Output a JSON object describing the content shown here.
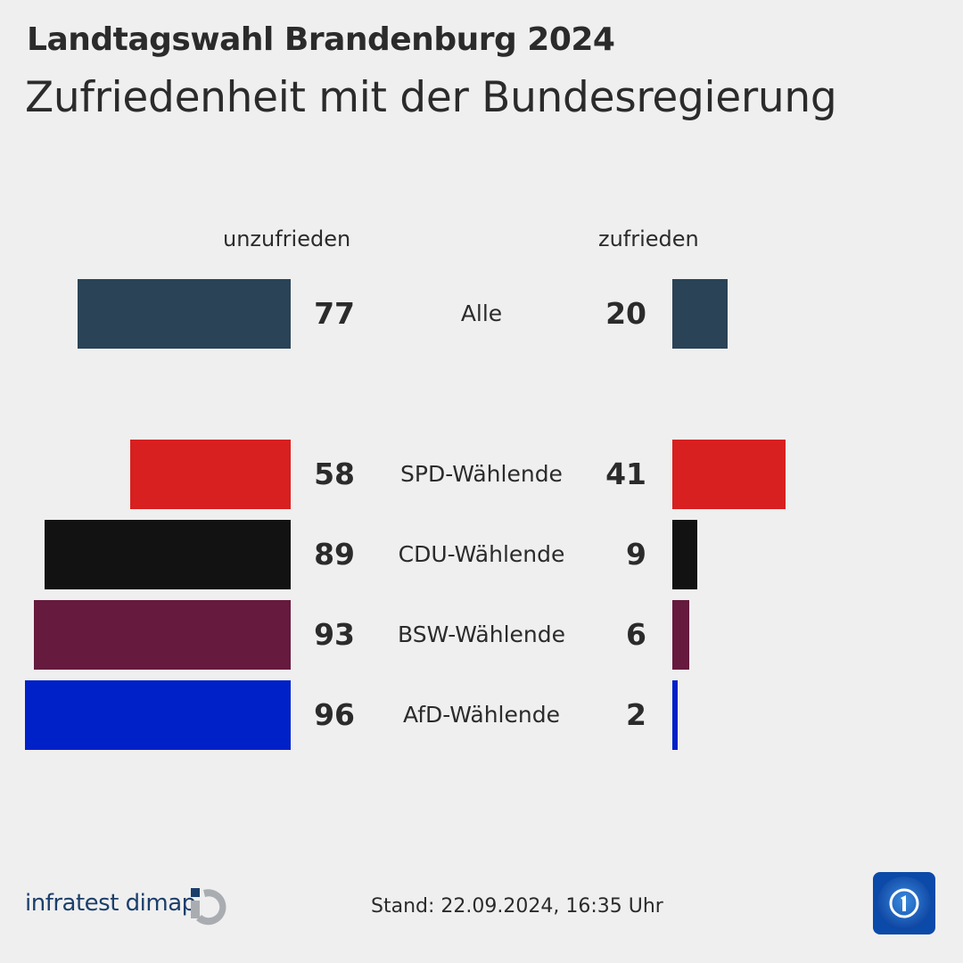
{
  "header": {
    "title": "Landtagswahl Brandenburg 2024",
    "subtitle": "Zufriedenheit mit der Bundesregierung"
  },
  "chart_data": {
    "type": "bar",
    "orientation": "horizontal-diverging",
    "column_headers": {
      "left": "unzufrieden",
      "right": "zufrieden"
    },
    "categories": [
      "Alle",
      "SPD-Wählende",
      "CDU-Wählende",
      "BSW-Wählende",
      "AfD-Wählende"
    ],
    "series": [
      {
        "name": "unzufrieden",
        "values": [
          77,
          58,
          89,
          93,
          96
        ]
      },
      {
        "name": "zufrieden",
        "values": [
          20,
          41,
          9,
          6,
          2
        ]
      }
    ],
    "colors": [
      "#2a4356",
      "#d7201f",
      "#121212",
      "#661a3e",
      "#0021c8"
    ],
    "unit": "%"
  },
  "footer": {
    "stand": "Stand:  22.09.2024, 16:35 Uhr",
    "brand": "infratest dimap",
    "broadcaster_logo": "tagesschau"
  }
}
